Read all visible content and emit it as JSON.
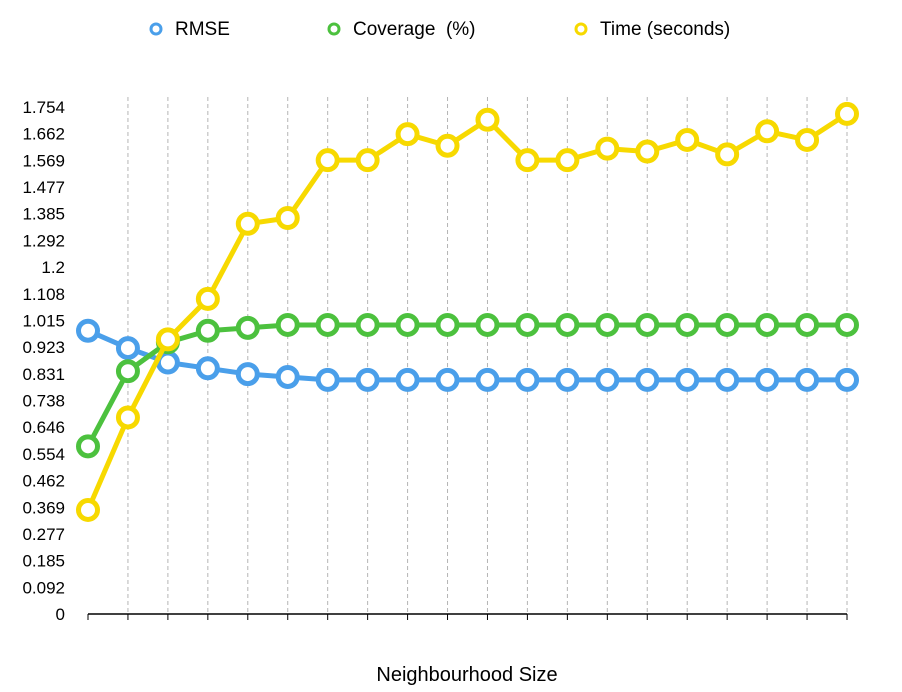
{
  "chart_data": {
    "type": "line",
    "title": "",
    "xlabel": "Neighbourhood Size",
    "ylabel": "",
    "y_ticks": [
      "0",
      "0.092",
      "0.185",
      "0.277",
      "0.369",
      "0.462",
      "0.554",
      "0.646",
      "0.738",
      "0.831",
      "0.923",
      "1.015",
      "1.108",
      "1.2",
      "1.292",
      "1.385",
      "1.477",
      "1.569",
      "1.662",
      "1.754"
    ],
    "ylim": [
      0,
      1.754
    ],
    "grid": "vertical dashed",
    "legend_position": "top",
    "point_count": 20,
    "series": [
      {
        "name": "RMSE",
        "color": "#4A9FEA",
        "values": [
          0.98,
          0.92,
          0.87,
          0.85,
          0.83,
          0.82,
          0.81,
          0.81,
          0.81,
          0.81,
          0.81,
          0.81,
          0.81,
          0.81,
          0.81,
          0.81,
          0.81,
          0.81,
          0.81,
          0.81
        ]
      },
      {
        "name": "Coverage  (%)",
        "color": "#4CC13E",
        "values": [
          0.58,
          0.84,
          0.94,
          0.98,
          0.99,
          1.0,
          1.0,
          1.0,
          1.0,
          1.0,
          1.0,
          1.0,
          1.0,
          1.0,
          1.0,
          1.0,
          1.0,
          1.0,
          1.0,
          1.0
        ]
      },
      {
        "name": "Time (seconds)",
        "color": "#F7D900",
        "values": [
          0.36,
          0.68,
          0.95,
          1.09,
          1.35,
          1.37,
          1.57,
          1.57,
          1.66,
          1.62,
          1.71,
          1.57,
          1.57,
          1.61,
          1.6,
          1.64,
          1.59,
          1.67,
          1.64,
          1.73
        ]
      }
    ]
  }
}
